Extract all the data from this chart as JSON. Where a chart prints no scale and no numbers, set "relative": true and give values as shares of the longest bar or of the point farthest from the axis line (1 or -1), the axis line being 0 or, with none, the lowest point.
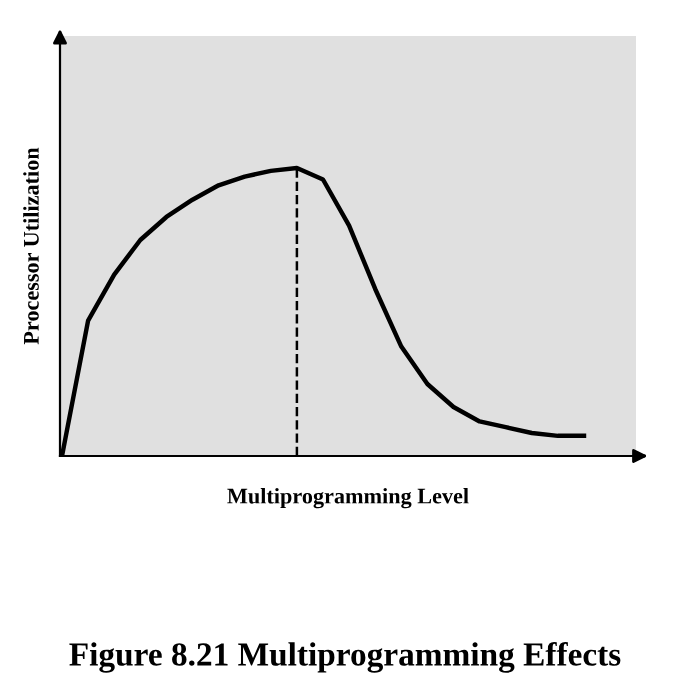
{
  "chart_data": {
    "type": "line",
    "relative": true,
    "title": "Figure 8.21 Multiprogramming Effects",
    "xlabel": "Multiprogramming Level",
    "ylabel": "Processor Utilization",
    "categories": [
      null,
      null,
      null,
      null,
      null,
      null,
      null,
      null,
      null,
      null,
      null,
      null,
      null,
      null,
      null,
      null,
      null,
      null,
      null,
      null,
      null
    ],
    "series": [
      {
        "color": "#000000",
        "values": [
          0,
          0.47,
          0.63,
          0.75,
          0.83,
          0.89,
          0.94,
          0.97,
          0.99,
          1.0,
          0.96,
          0.8,
          0.58,
          0.38,
          0.25,
          0.17,
          0.12,
          0.1,
          0.08,
          0.07,
          0.07
        ]
      }
    ],
    "grid": false,
    "legend": false
  }
}
